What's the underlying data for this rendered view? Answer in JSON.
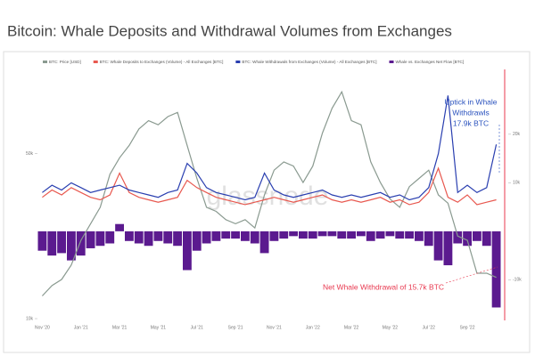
{
  "chart_data": {
    "type": "combo",
    "title": "Bitcoin: Whale Deposits and Withdrawal Volumes from Exchanges",
    "watermark": "glassnode",
    "categories": [
      "Nov '20",
      null,
      null,
      null,
      "Jan '21",
      null,
      null,
      null,
      "Mar '21",
      null,
      null,
      null,
      "May '21",
      null,
      null,
      null,
      "Jul '21",
      null,
      null,
      null,
      "Sep '21",
      null,
      null,
      null,
      "Nov '21",
      null,
      null,
      null,
      "Jan '22",
      null,
      null,
      null,
      "Mar '22",
      null,
      null,
      null,
      "May '22",
      null,
      null,
      null,
      "Jul '22",
      null,
      null,
      null,
      "Sep '22",
      null,
      null,
      null
    ],
    "series": [
      {
        "name": "BTC: Price [USD]",
        "type": "line",
        "color": "#8a9a90",
        "axis": "y",
        "values": [
          15500,
          18000,
          19500,
          23000,
          29000,
          33000,
          37000,
          45000,
          49000,
          52000,
          56000,
          58000,
          57000,
          59000,
          60000,
          52000,
          44000,
          37000,
          36000,
          34000,
          33000,
          34000,
          32000,
          40000,
          46000,
          48000,
          47000,
          43000,
          47000,
          55000,
          61000,
          65000,
          58000,
          57000,
          48000,
          43000,
          39000,
          37000,
          42000,
          44000,
          46000,
          40000,
          38000,
          30000,
          29000,
          21000,
          21000,
          20000
        ]
      },
      {
        "name": "BTC: Whale Deposits to Exchanges (Volume) - All Exchanges [BTC]",
        "type": "line",
        "color": "#e8584f",
        "axis": "y2",
        "values": [
          7000,
          8500,
          7500,
          9000,
          8000,
          7000,
          6500,
          7500,
          12000,
          8000,
          7000,
          6500,
          6000,
          6500,
          7000,
          10500,
          9000,
          8000,
          7000,
          6500,
          6000,
          5500,
          6000,
          6500,
          7000,
          6500,
          6000,
          6500,
          7000,
          7500,
          6500,
          6000,
          6500,
          6000,
          6500,
          7000,
          6000,
          6500,
          5500,
          6000,
          8000,
          13000,
          7000,
          6000,
          7500,
          5500,
          6000,
          6500
        ]
      },
      {
        "name": "BTC: Whale Withdrawals from Exchanges (Volume) - All Exchanges [BTC]",
        "type": "line",
        "color": "#2a3fb0",
        "axis": "y2",
        "values": [
          8000,
          9500,
          8500,
          10000,
          9000,
          8000,
          8500,
          9000,
          9500,
          8500,
          8000,
          7500,
          7000,
          8000,
          8500,
          14000,
          12000,
          9000,
          8000,
          7500,
          7000,
          6500,
          7000,
          12000,
          8500,
          7500,
          7000,
          7500,
          8000,
          8500,
          7500,
          7000,
          7500,
          7000,
          7500,
          8000,
          7000,
          7500,
          6500,
          7000,
          9000,
          16000,
          28000,
          8000,
          9500,
          8000,
          9000,
          17900
        ]
      },
      {
        "name": "Whale vs. Exchanges Net Flow [BTC]",
        "type": "bar",
        "color": "#5b1a8f",
        "axis": "y2",
        "values": [
          -4000,
          -5000,
          -4500,
          -6000,
          -5000,
          -3500,
          -3000,
          -2500,
          1500,
          -2000,
          -2500,
          -3000,
          -2000,
          -2500,
          -3000,
          -8000,
          -4000,
          -2500,
          -2000,
          -1500,
          -1500,
          -2000,
          -2500,
          -4500,
          -2000,
          -1500,
          -1000,
          -1500,
          -1500,
          -1000,
          -1000,
          -1500,
          -1500,
          -1000,
          -2000,
          -1500,
          -1000,
          -1500,
          -1500,
          -2000,
          -3000,
          -6000,
          -7000,
          -2500,
          -3000,
          -2000,
          -3000,
          -15700
        ]
      }
    ],
    "ylim": [
      10000,
      70000
    ],
    "yticks": [
      {
        "value": 10000,
        "label": "10k"
      },
      {
        "value": 50000,
        "label": "50k"
      }
    ],
    "y2lim": [
      -18000,
      33000
    ],
    "y2ticks": [
      {
        "value": 20000,
        "label": "20k"
      },
      {
        "value": 10000,
        "label": "10k"
      },
      {
        "value": -10000,
        "label": "-10k"
      }
    ],
    "annotations": [
      {
        "text": [
          "Uptick in Whale",
          "Withdrawls",
          "17.9k BTC"
        ],
        "color": "#2a52be"
      },
      {
        "text": [
          "Net Whale Withdrawal of 15.7k BTC"
        ],
        "color": "#e8384f"
      }
    ]
  }
}
